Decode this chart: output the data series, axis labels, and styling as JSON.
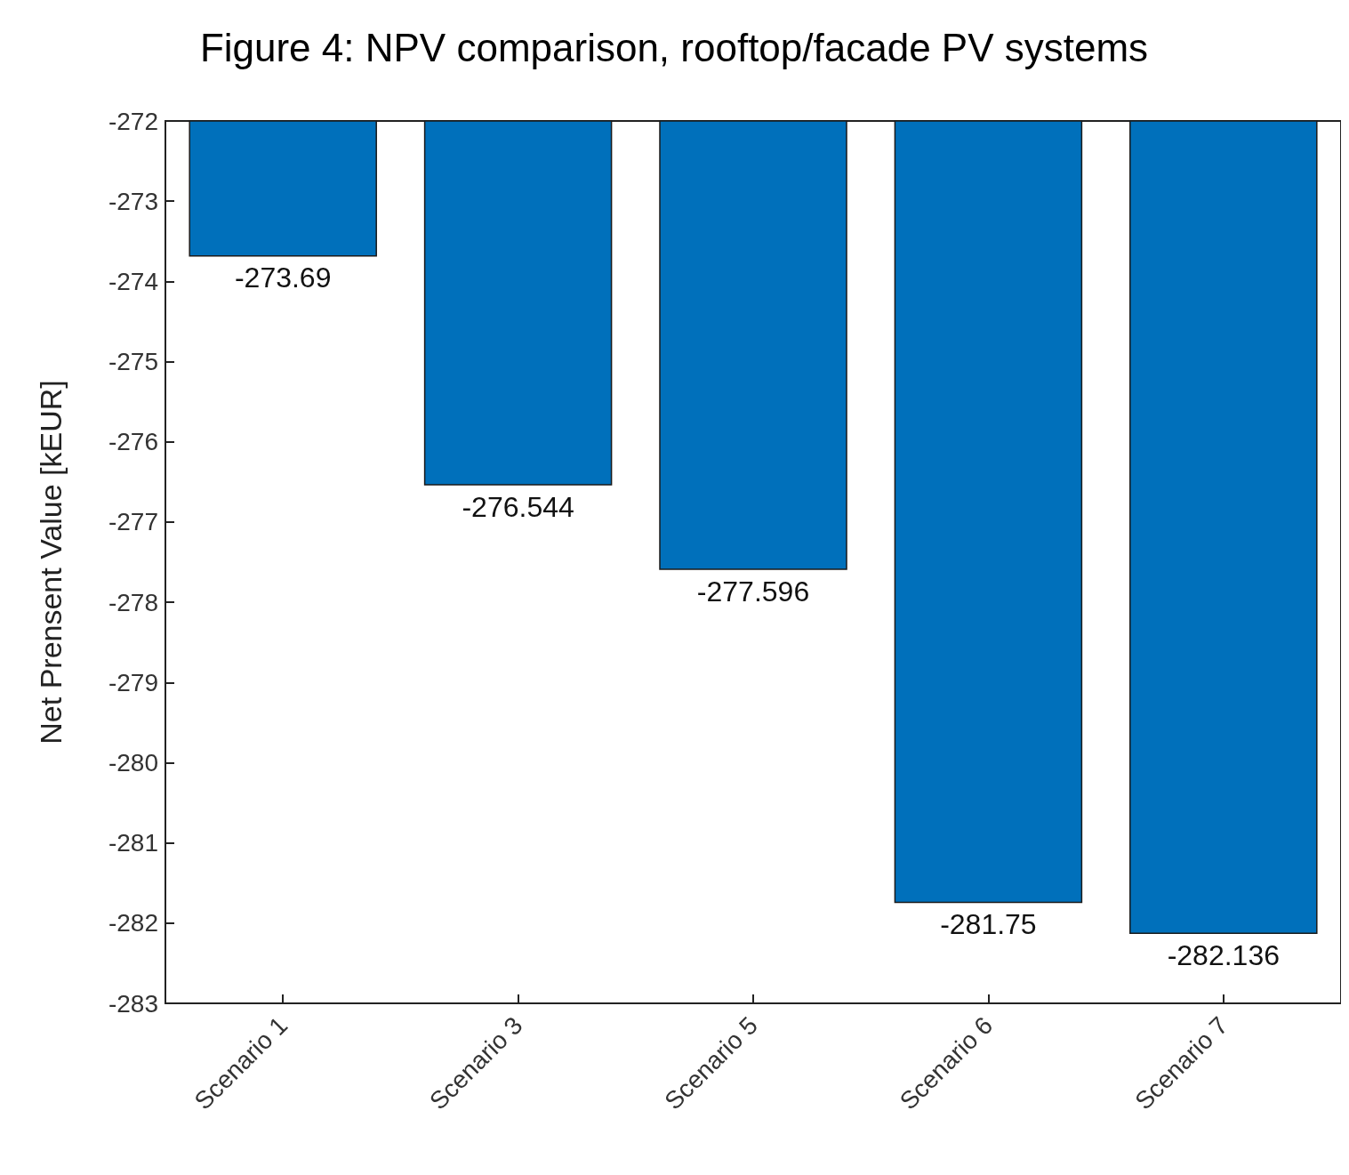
{
  "chart_data": {
    "type": "bar",
    "title": "Figure 4: NPV comparison, rooftop/facade PV systems",
    "ylabel": "Net Prensent Value [kEUR]",
    "categories": [
      "Scenario 1",
      "Scenario 3",
      "Scenario 5",
      "Scenario 6",
      "Scenario 7"
    ],
    "values": [
      -273.69,
      -276.544,
      -277.596,
      -281.75,
      -282.136
    ],
    "color": "#0070bb",
    "ylim": [
      -283,
      -272
    ],
    "yticks": [
      -283,
      -282,
      -281,
      -280,
      -279,
      -278,
      -277,
      -276,
      -275,
      -274,
      -273,
      -272
    ],
    "data_labels": true
  }
}
